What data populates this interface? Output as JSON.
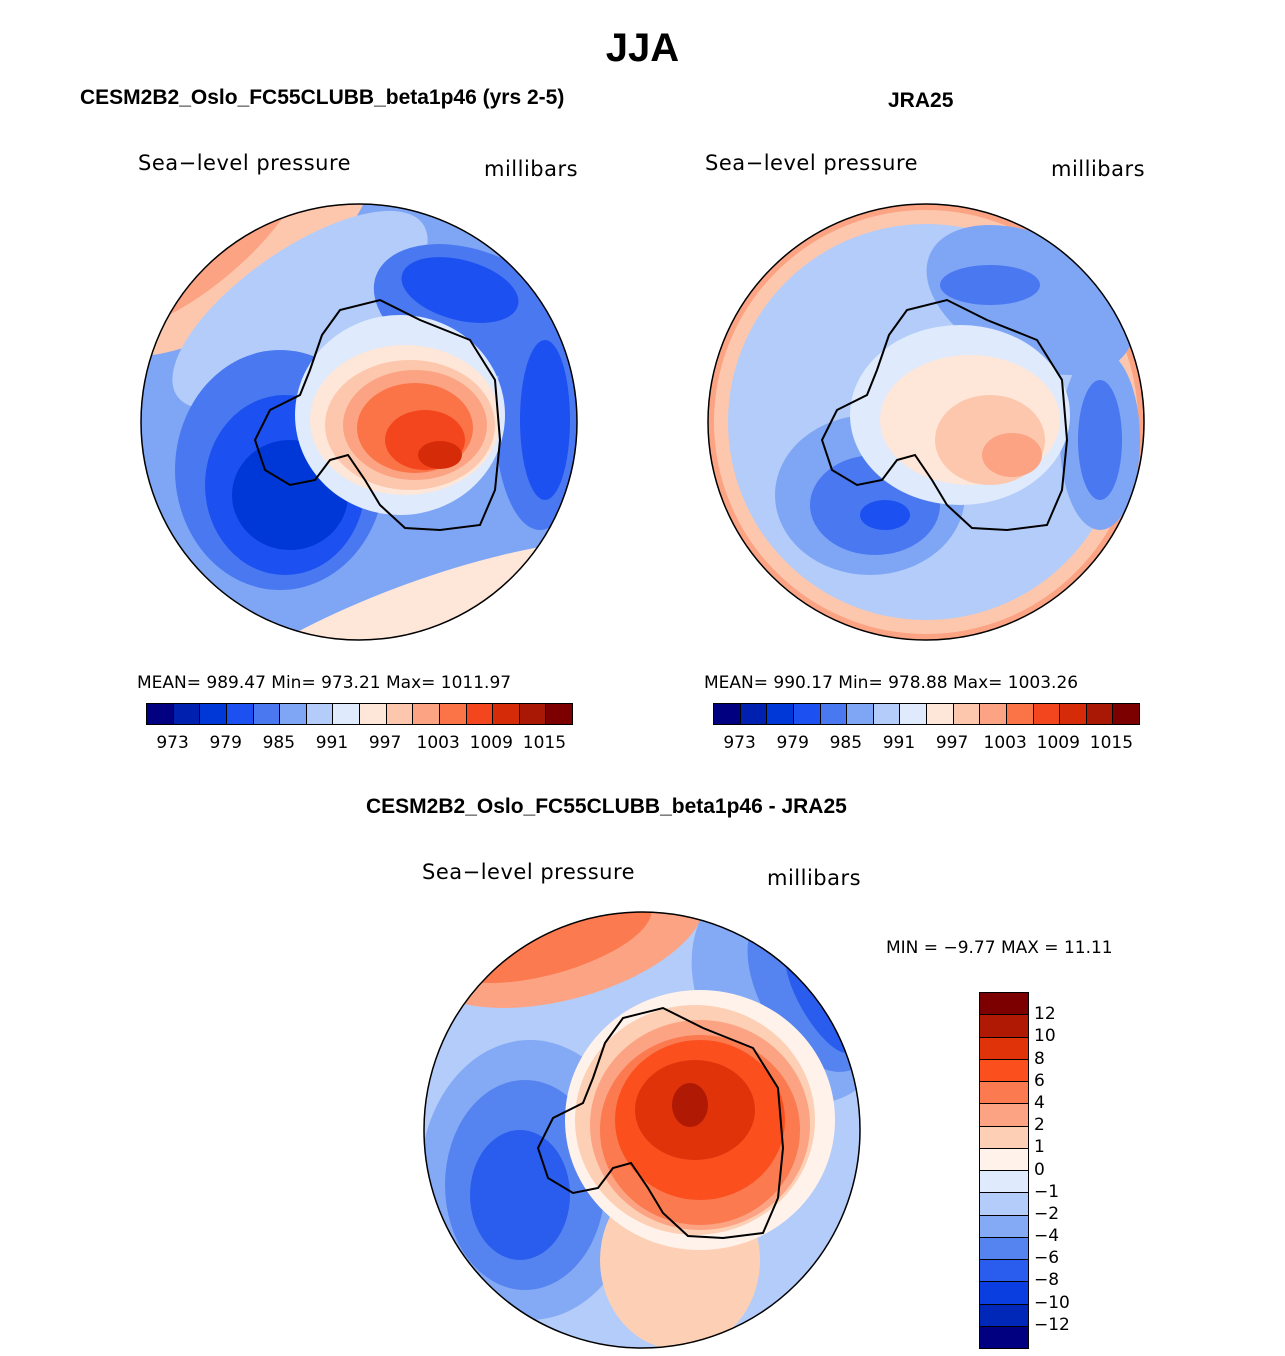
{
  "title": "JJA",
  "panels": [
    {
      "title": "CESM2B2_Oslo_FC55CLUBB_beta1p46 (yrs 2-5)",
      "variable": "Sea−level pressure",
      "units": "millibars",
      "stats": "MEAN= 989.47   Min= 973.21   Max= 1011.97"
    },
    {
      "title": "JRA25",
      "variable": "Sea−level pressure",
      "units": "millibars",
      "stats": "MEAN= 990.17   Min= 978.88   Max= 1003.26"
    }
  ],
  "diff_panel": {
    "title": "CESM2B2_Oslo_FC55CLUBB_beta1p46 - JRA25",
    "variable": "Sea−level pressure",
    "units": "millibars",
    "stats": "MIN =   −9.77 MAX =   11.11"
  },
  "colorbar": {
    "colors": [
      "#000080",
      "#0020b0",
      "#0038d8",
      "#1c50f0",
      "#4a78f0",
      "#7fa6f5",
      "#b3ccf9",
      "#dfeafc",
      "#fee6d8",
      "#fdc7ad",
      "#fca384",
      "#fb7448",
      "#f3461e",
      "#d62b08",
      "#a91804",
      "#7c0000"
    ],
    "ticks": [
      "973",
      "979",
      "985",
      "991",
      "997",
      "1003",
      "1009",
      "1015"
    ]
  },
  "diff_colorbar": {
    "colors": [
      "#7c0000",
      "#b01a04",
      "#e0330a",
      "#fb4f1e",
      "#fb7a4f",
      "#fca383",
      "#fdd0b5",
      "#fff2ea",
      "#dfeafc",
      "#b3ccf9",
      "#84a9f5",
      "#5584f0",
      "#2a5cee",
      "#0a3ee0",
      "#0028b8",
      "#000080"
    ],
    "ticks": [
      "12",
      "10",
      "8",
      "6",
      "4",
      "2",
      "1",
      "0",
      "−1",
      "−2",
      "−4",
      "−6",
      "−8",
      "−10",
      "−12"
    ]
  }
}
